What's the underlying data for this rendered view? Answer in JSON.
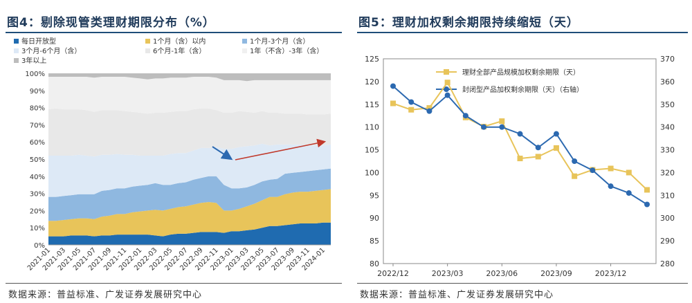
{
  "left": {
    "title": "图4：剔除现管类理财期限分布（%）",
    "source": "数据来源：普益标准、广发证券发展研究中心"
  },
  "right": {
    "title": "图5：理财加权剩余期限持续缩短（天）",
    "source": "数据来源：普益标准、广发证券发展研究中心"
  },
  "chart_data": [
    {
      "type": "area",
      "stacked": true,
      "x": [
        "2021-01",
        "2021-02",
        "2021-03",
        "2021-04",
        "2021-05",
        "2021-06",
        "2021-07",
        "2021-08",
        "2021-09",
        "2021-10",
        "2021-11",
        "2021-12",
        "2022-01",
        "2022-02",
        "2022-03",
        "2022-04",
        "2022-05",
        "2022-06",
        "2022-07",
        "2022-08",
        "2022-09",
        "2022-10",
        "2022-11",
        "2022-12",
        "2023-01",
        "2023-02",
        "2023-03",
        "2023-04",
        "2023-05",
        "2023-06",
        "2023-07",
        "2023-08",
        "2023-09",
        "2023-10",
        "2023-11",
        "2023-12",
        "2024-01",
        "2024-02"
      ],
      "x_tick_labels": [
        "2021-01",
        "2021-03",
        "2021-05",
        "2021-07",
        "2021-09",
        "2021-11",
        "2022-01",
        "2022-03",
        "2022-05",
        "2022-07",
        "2022-09",
        "2022-11",
        "2023-01",
        "2023-03",
        "2023-05",
        "2023-07",
        "2023-09",
        "2023-11",
        "2024-01"
      ],
      "ylim": [
        0,
        100
      ],
      "y_tick_labels": [
        "0%",
        "10%",
        "20%",
        "30%",
        "40%",
        "50%",
        "60%",
        "70%",
        "80%",
        "90%",
        "100%"
      ],
      "legend_position": "top",
      "series": [
        {
          "name": "每日开放型",
          "color": "#1f6bb0",
          "values": [
            5,
            5,
            5,
            5.5,
            5.5,
            5.5,
            5,
            5.5,
            5.5,
            6,
            6,
            6,
            6,
            6,
            5.5,
            5,
            6,
            6.5,
            6.5,
            7,
            7.5,
            7.5,
            7.5,
            7,
            8,
            8,
            8.5,
            9,
            10,
            11,
            11,
            11.5,
            12,
            12.5,
            12.5,
            12.5,
            13,
            13
          ]
        },
        {
          "name": "1个月（含）以内",
          "color": "#e8c45a",
          "values": [
            9,
            9,
            9.5,
            9.5,
            10,
            10,
            10,
            11,
            11.5,
            12,
            12,
            13,
            13.5,
            14,
            15,
            15,
            15,
            15.5,
            16,
            16.5,
            17,
            17.5,
            17,
            13,
            12,
            13,
            14,
            15,
            16,
            17,
            17,
            18,
            18.5,
            18.5,
            18.5,
            19,
            19,
            19.5
          ]
        },
        {
          "name": "1个月-3个月（含）",
          "color": "#8fb8e0",
          "values": [
            14,
            14,
            14,
            14,
            14,
            14,
            14.5,
            15,
            15,
            15,
            15,
            15,
            15,
            15,
            15.5,
            15,
            14,
            14,
            14,
            14.5,
            14.5,
            15,
            15.5,
            15,
            13,
            12,
            11,
            11,
            11,
            10,
            10.5,
            12,
            11.5,
            11.5,
            12,
            12,
            12,
            12
          ]
        },
        {
          "name": "3个月-6个月（含）",
          "color": "#dde9f6",
          "values": [
            24,
            24,
            23.5,
            23,
            23,
            22.5,
            22,
            21,
            20.5,
            20,
            19.5,
            18.5,
            17.5,
            17,
            16,
            17,
            18,
            17.5,
            17,
            17,
            17.5,
            16.5,
            17,
            21,
            23,
            24,
            24,
            23,
            22,
            20,
            20,
            17,
            16.5,
            16,
            15,
            14.5,
            14,
            14
          ]
        },
        {
          "name": "6个月-1年（含）",
          "color": "#e8e8e8",
          "values": [
            27,
            27.5,
            27,
            27,
            26.5,
            26.5,
            26,
            26,
            26,
            25.5,
            25.5,
            25,
            25,
            24.5,
            25,
            25,
            24.5,
            24.5,
            24.5,
            24,
            23,
            23,
            21.5,
            21,
            21,
            21,
            20,
            19,
            19,
            19,
            18.5,
            18,
            18,
            18,
            18,
            18,
            18,
            18
          ]
        },
        {
          "name": "1年（不含）-3年（含）",
          "color": "#f0f0f0",
          "values": [
            19,
            18.5,
            19,
            19,
            19,
            19.5,
            20,
            19.5,
            19.5,
            19.5,
            20,
            20,
            20,
            20,
            20,
            20,
            20,
            19.5,
            19.5,
            19,
            18.5,
            18.5,
            19,
            19,
            19,
            18,
            18,
            19,
            18,
            19,
            19,
            19.5,
            19.5,
            19.5,
            20,
            20,
            20,
            19.5
          ]
        },
        {
          "name": "3年以上",
          "color": "#bdbdbd",
          "values": [
            2,
            2,
            2,
            2,
            2,
            2,
            2.5,
            2,
            2,
            2,
            2,
            2.5,
            3,
            3.5,
            3,
            3,
            2.5,
            2.5,
            2.5,
            2,
            2,
            2,
            2.5,
            4,
            4,
            4,
            4.5,
            4,
            4,
            4,
            4,
            4,
            4,
            4,
            4,
            4,
            4,
            4
          ]
        }
      ]
    },
    {
      "type": "line",
      "x_tick_labels": [
        "2022/12",
        "2023/03",
        "2023/06",
        "2023/09",
        "2023/12"
      ],
      "y_left_lim": [
        80,
        125
      ],
      "y_left_ticks": [
        80,
        85,
        90,
        95,
        100,
        105,
        110,
        115,
        120,
        125
      ],
      "y_right_lim": [
        280,
        370
      ],
      "y_right_ticks": [
        280,
        290,
        300,
        310,
        320,
        330,
        340,
        350,
        360,
        370
      ],
      "legend_position": "top",
      "series": [
        {
          "name": "理财全部产品规模加权剩余期限（天）",
          "axis": "left",
          "color": "#e8c45a",
          "values": [
            115.2,
            113.8,
            114.2,
            119.8,
            112.1,
            110.1,
            111.3,
            103.1,
            103.5,
            105.4,
            99.2,
            100.6,
            100.9,
            100.0,
            96.2
          ]
        },
        {
          "name": "封闭型产品加权剩余期限（天）（右轴）",
          "axis": "right",
          "color": "#2c69b0",
          "values": [
            358,
            351,
            347,
            354,
            345,
            340,
            340,
            337,
            331,
            337,
            325,
            321,
            314,
            311,
            306
          ]
        }
      ]
    }
  ]
}
